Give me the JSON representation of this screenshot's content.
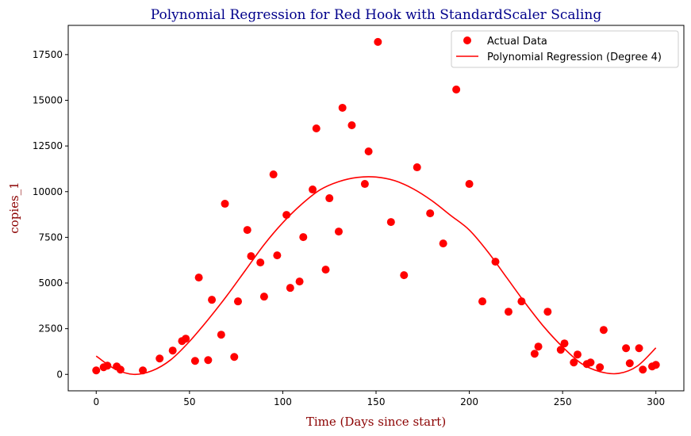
{
  "chart_data": {
    "type": "scatter",
    "title": "Polynomial Regression for Red Hook with StandardScaler Scaling",
    "xlabel": "Time (Days since start)",
    "ylabel": "copies_1",
    "xlim": [
      -15,
      315
    ],
    "ylim": [
      -900,
      19100
    ],
    "xticks": [
      0,
      50,
      100,
      150,
      200,
      250,
      300
    ],
    "yticks": [
      0,
      2500,
      5000,
      7500,
      10000,
      12500,
      15000,
      17500
    ],
    "grid": false,
    "legend_position": "top-right",
    "series": [
      {
        "name": "Actual Data",
        "kind": "scatter",
        "color": "#ff0000",
        "points": [
          [
            0,
            217
          ],
          [
            4,
            390
          ],
          [
            6,
            478
          ],
          [
            11,
            434
          ],
          [
            13,
            260
          ],
          [
            25,
            217
          ],
          [
            34,
            868
          ],
          [
            41,
            1303
          ],
          [
            46,
            1824
          ],
          [
            48,
            1954
          ],
          [
            53,
            738
          ],
          [
            55,
            5298
          ],
          [
            60,
            782
          ],
          [
            62,
            4082
          ],
          [
            67,
            2171
          ],
          [
            69,
            9336
          ],
          [
            74,
            955
          ],
          [
            76,
            3995
          ],
          [
            81,
            7903
          ],
          [
            83,
            6470
          ],
          [
            88,
            6123
          ],
          [
            90,
            4255
          ],
          [
            95,
            10942
          ],
          [
            97,
            6513
          ],
          [
            102,
            8728
          ],
          [
            104,
            4733
          ],
          [
            109,
            5081
          ],
          [
            111,
            7513
          ],
          [
            116,
            10118
          ],
          [
            118,
            13460
          ],
          [
            123,
            5732
          ],
          [
            125,
            9640
          ],
          [
            130,
            7816
          ],
          [
            132,
            14590
          ],
          [
            137,
            13634
          ],
          [
            144,
            10421
          ],
          [
            146,
            12201
          ],
          [
            151,
            18194
          ],
          [
            158,
            8337
          ],
          [
            165,
            5428
          ],
          [
            172,
            11333
          ],
          [
            179,
            8815
          ],
          [
            186,
            7165
          ],
          [
            193,
            15589
          ],
          [
            200,
            10421
          ],
          [
            207,
            3995
          ],
          [
            214,
            6166
          ],
          [
            221,
            3430
          ],
          [
            228,
            3995
          ],
          [
            235,
            1129
          ],
          [
            237,
            1520
          ],
          [
            242,
            3430
          ],
          [
            249,
            1346
          ],
          [
            251,
            1694
          ],
          [
            256,
            651
          ],
          [
            258,
            1086
          ],
          [
            263,
            564
          ],
          [
            265,
            651
          ],
          [
            270,
            391
          ],
          [
            272,
            2432
          ],
          [
            284,
            1433
          ],
          [
            286,
            608
          ],
          [
            291,
            1433
          ],
          [
            293,
            260
          ],
          [
            298,
            434
          ],
          [
            300,
            521
          ]
        ]
      },
      {
        "name": "Polynomial Regression (Degree 4)",
        "kind": "line",
        "color": "#ff0000",
        "points": [
          [
            0,
            1000
          ],
          [
            10,
            300
          ],
          [
            20,
            0
          ],
          [
            30,
            200
          ],
          [
            40,
            800
          ],
          [
            50,
            1800
          ],
          [
            60,
            3000
          ],
          [
            70,
            4300
          ],
          [
            80,
            5700
          ],
          [
            90,
            7100
          ],
          [
            100,
            8300
          ],
          [
            110,
            9300
          ],
          [
            120,
            10100
          ],
          [
            130,
            10550
          ],
          [
            140,
            10780
          ],
          [
            150,
            10800
          ],
          [
            160,
            10600
          ],
          [
            170,
            10150
          ],
          [
            180,
            9500
          ],
          [
            190,
            8700
          ],
          [
            200,
            7900
          ],
          [
            210,
            6700
          ],
          [
            220,
            5300
          ],
          [
            230,
            3900
          ],
          [
            240,
            2600
          ],
          [
            250,
            1500
          ],
          [
            260,
            600
          ],
          [
            270,
            150
          ],
          [
            280,
            50
          ],
          [
            290,
            450
          ],
          [
            300,
            1450
          ]
        ]
      }
    ]
  }
}
